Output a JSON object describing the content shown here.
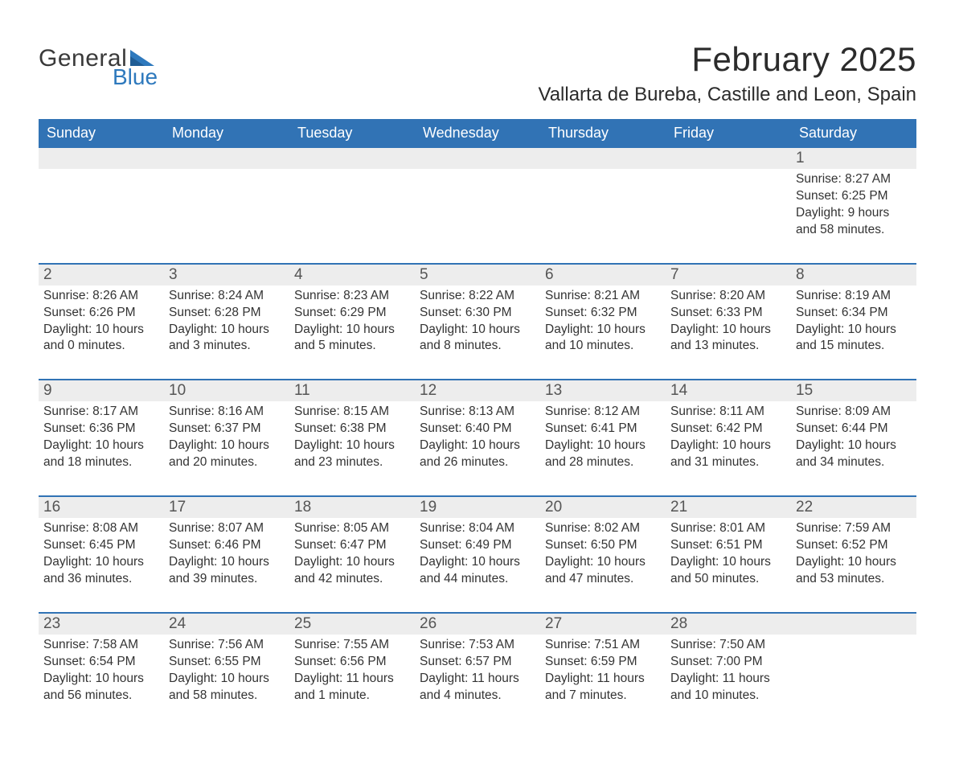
{
  "logo": {
    "text_general": "General",
    "text_blue": "Blue",
    "tri_color": "#2e79bd"
  },
  "header": {
    "month_title": "February 2025",
    "location": "Vallarta de Bureba, Castille and Leon, Spain"
  },
  "colors": {
    "header_bg": "#3173b5",
    "header_text": "#ffffff",
    "daynum_bg": "#ededed",
    "divider": "#3173b5",
    "body_text": "#333333",
    "daynum_text": "#555555",
    "page_bg": "#ffffff"
  },
  "weekdays": [
    "Sunday",
    "Monday",
    "Tuesday",
    "Wednesday",
    "Thursday",
    "Friday",
    "Saturday"
  ],
  "weeks": [
    [
      null,
      null,
      null,
      null,
      null,
      null,
      {
        "n": "1",
        "sunrise": "Sunrise: 8:27 AM",
        "sunset": "Sunset: 6:25 PM",
        "daylight1": "Daylight: 9 hours",
        "daylight2": "and 58 minutes."
      }
    ],
    [
      {
        "n": "2",
        "sunrise": "Sunrise: 8:26 AM",
        "sunset": "Sunset: 6:26 PM",
        "daylight1": "Daylight: 10 hours",
        "daylight2": "and 0 minutes."
      },
      {
        "n": "3",
        "sunrise": "Sunrise: 8:24 AM",
        "sunset": "Sunset: 6:28 PM",
        "daylight1": "Daylight: 10 hours",
        "daylight2": "and 3 minutes."
      },
      {
        "n": "4",
        "sunrise": "Sunrise: 8:23 AM",
        "sunset": "Sunset: 6:29 PM",
        "daylight1": "Daylight: 10 hours",
        "daylight2": "and 5 minutes."
      },
      {
        "n": "5",
        "sunrise": "Sunrise: 8:22 AM",
        "sunset": "Sunset: 6:30 PM",
        "daylight1": "Daylight: 10 hours",
        "daylight2": "and 8 minutes."
      },
      {
        "n": "6",
        "sunrise": "Sunrise: 8:21 AM",
        "sunset": "Sunset: 6:32 PM",
        "daylight1": "Daylight: 10 hours",
        "daylight2": "and 10 minutes."
      },
      {
        "n": "7",
        "sunrise": "Sunrise: 8:20 AM",
        "sunset": "Sunset: 6:33 PM",
        "daylight1": "Daylight: 10 hours",
        "daylight2": "and 13 minutes."
      },
      {
        "n": "8",
        "sunrise": "Sunrise: 8:19 AM",
        "sunset": "Sunset: 6:34 PM",
        "daylight1": "Daylight: 10 hours",
        "daylight2": "and 15 minutes."
      }
    ],
    [
      {
        "n": "9",
        "sunrise": "Sunrise: 8:17 AM",
        "sunset": "Sunset: 6:36 PM",
        "daylight1": "Daylight: 10 hours",
        "daylight2": "and 18 minutes."
      },
      {
        "n": "10",
        "sunrise": "Sunrise: 8:16 AM",
        "sunset": "Sunset: 6:37 PM",
        "daylight1": "Daylight: 10 hours",
        "daylight2": "and 20 minutes."
      },
      {
        "n": "11",
        "sunrise": "Sunrise: 8:15 AM",
        "sunset": "Sunset: 6:38 PM",
        "daylight1": "Daylight: 10 hours",
        "daylight2": "and 23 minutes."
      },
      {
        "n": "12",
        "sunrise": "Sunrise: 8:13 AM",
        "sunset": "Sunset: 6:40 PM",
        "daylight1": "Daylight: 10 hours",
        "daylight2": "and 26 minutes."
      },
      {
        "n": "13",
        "sunrise": "Sunrise: 8:12 AM",
        "sunset": "Sunset: 6:41 PM",
        "daylight1": "Daylight: 10 hours",
        "daylight2": "and 28 minutes."
      },
      {
        "n": "14",
        "sunrise": "Sunrise: 8:11 AM",
        "sunset": "Sunset: 6:42 PM",
        "daylight1": "Daylight: 10 hours",
        "daylight2": "and 31 minutes."
      },
      {
        "n": "15",
        "sunrise": "Sunrise: 8:09 AM",
        "sunset": "Sunset: 6:44 PM",
        "daylight1": "Daylight: 10 hours",
        "daylight2": "and 34 minutes."
      }
    ],
    [
      {
        "n": "16",
        "sunrise": "Sunrise: 8:08 AM",
        "sunset": "Sunset: 6:45 PM",
        "daylight1": "Daylight: 10 hours",
        "daylight2": "and 36 minutes."
      },
      {
        "n": "17",
        "sunrise": "Sunrise: 8:07 AM",
        "sunset": "Sunset: 6:46 PM",
        "daylight1": "Daylight: 10 hours",
        "daylight2": "and 39 minutes."
      },
      {
        "n": "18",
        "sunrise": "Sunrise: 8:05 AM",
        "sunset": "Sunset: 6:47 PM",
        "daylight1": "Daylight: 10 hours",
        "daylight2": "and 42 minutes."
      },
      {
        "n": "19",
        "sunrise": "Sunrise: 8:04 AM",
        "sunset": "Sunset: 6:49 PM",
        "daylight1": "Daylight: 10 hours",
        "daylight2": "and 44 minutes."
      },
      {
        "n": "20",
        "sunrise": "Sunrise: 8:02 AM",
        "sunset": "Sunset: 6:50 PM",
        "daylight1": "Daylight: 10 hours",
        "daylight2": "and 47 minutes."
      },
      {
        "n": "21",
        "sunrise": "Sunrise: 8:01 AM",
        "sunset": "Sunset: 6:51 PM",
        "daylight1": "Daylight: 10 hours",
        "daylight2": "and 50 minutes."
      },
      {
        "n": "22",
        "sunrise": "Sunrise: 7:59 AM",
        "sunset": "Sunset: 6:52 PM",
        "daylight1": "Daylight: 10 hours",
        "daylight2": "and 53 minutes."
      }
    ],
    [
      {
        "n": "23",
        "sunrise": "Sunrise: 7:58 AM",
        "sunset": "Sunset: 6:54 PM",
        "daylight1": "Daylight: 10 hours",
        "daylight2": "and 56 minutes."
      },
      {
        "n": "24",
        "sunrise": "Sunrise: 7:56 AM",
        "sunset": "Sunset: 6:55 PM",
        "daylight1": "Daylight: 10 hours",
        "daylight2": "and 58 minutes."
      },
      {
        "n": "25",
        "sunrise": "Sunrise: 7:55 AM",
        "sunset": "Sunset: 6:56 PM",
        "daylight1": "Daylight: 11 hours",
        "daylight2": "and 1 minute."
      },
      {
        "n": "26",
        "sunrise": "Sunrise: 7:53 AM",
        "sunset": "Sunset: 6:57 PM",
        "daylight1": "Daylight: 11 hours",
        "daylight2": "and 4 minutes."
      },
      {
        "n": "27",
        "sunrise": "Sunrise: 7:51 AM",
        "sunset": "Sunset: 6:59 PM",
        "daylight1": "Daylight: 11 hours",
        "daylight2": "and 7 minutes."
      },
      {
        "n": "28",
        "sunrise": "Sunrise: 7:50 AM",
        "sunset": "Sunset: 7:00 PM",
        "daylight1": "Daylight: 11 hours",
        "daylight2": "and 10 minutes."
      },
      null
    ]
  ]
}
